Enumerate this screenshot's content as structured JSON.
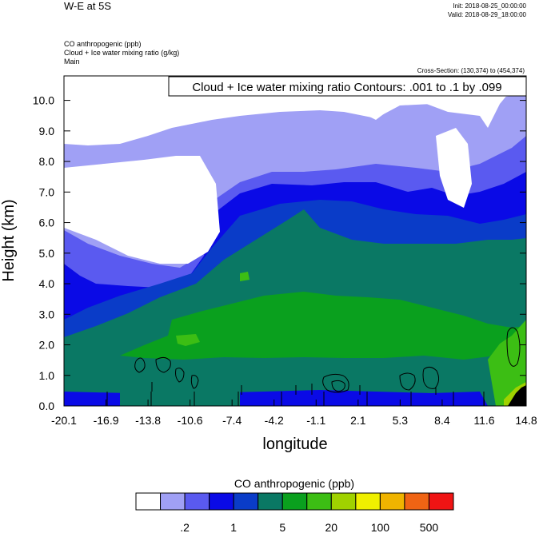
{
  "header": {
    "title": "W-E at 5S",
    "init": "Init: 2018-08-25_00:00:00",
    "valid": "Valid: 2018-08-29_18:00:00",
    "field1": "CO anthropogenic   (ppb)",
    "field2": "Cloud + Ice water mixing ratio   (g/kg)",
    "field3": "Main",
    "cross_section": "Cross-Section: (130,374) to (454,374)"
  },
  "chart_data": {
    "type": "heatmap",
    "title": "W-E at 5S",
    "xlabel": "longitude",
    "ylabel": "Height (km)",
    "xlim": [
      -20.1,
      14.8
    ],
    "ylim": [
      0.0,
      10.8
    ],
    "x_ticks": [
      "-20.1",
      "-16.9",
      "-13.8",
      "-10.6",
      "-7.4",
      "-4.2",
      "-1.1",
      "2.1",
      "5.3",
      "8.4",
      "11.6",
      "14.8"
    ],
    "y_ticks": [
      "0.0",
      "1.0",
      "2.0",
      "3.0",
      "4.0",
      "5.0",
      "6.0",
      "7.0",
      "8.0",
      "9.0",
      "10.0"
    ],
    "contour_annotation": "Cloud + Ice water mixing ratio Contours: .001 to .1 by .099",
    "colorbar": {
      "title": "CO anthropogenic  (ppb)",
      "labels": [
        ".2",
        "1",
        "5",
        "20",
        "100",
        "500"
      ],
      "colors": [
        "#ffffff",
        "#a0a0f5",
        "#5a5af0",
        "#0a0ae6",
        "#0a3cc8",
        "#0a7864",
        "#0aa01e",
        "#3cbe14",
        "#a0d200",
        "#f0f000",
        "#f0b400",
        "#f06414",
        "#f01414"
      ]
    }
  }
}
